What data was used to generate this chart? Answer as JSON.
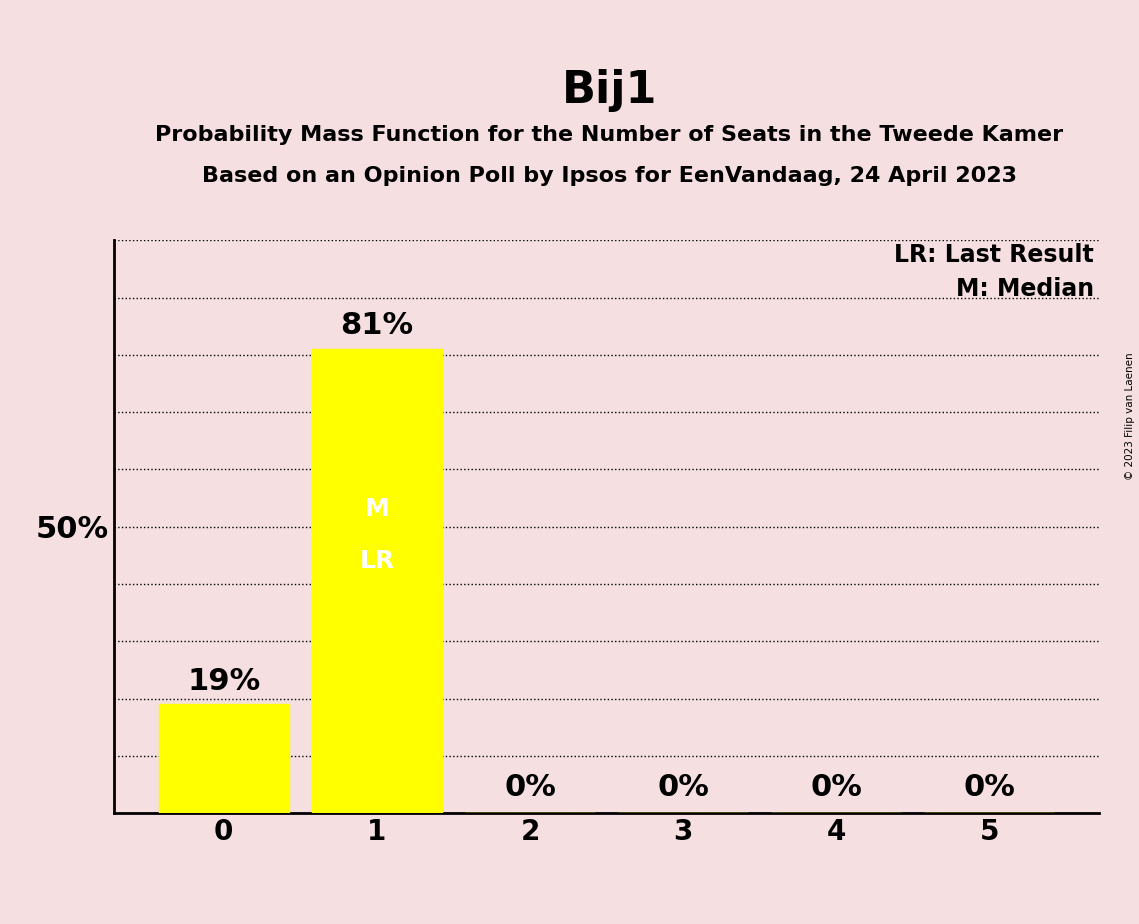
{
  "title": "Bij1",
  "subtitle1": "Probability Mass Function for the Number of Seats in the Tweede Kamer",
  "subtitle2": "Based on an Opinion Poll by Ipsos for EenVandaag, 24 April 2023",
  "copyright": "© 2023 Filip van Laenen",
  "categories": [
    0,
    1,
    2,
    3,
    4,
    5
  ],
  "values": [
    19,
    81,
    0,
    0,
    0,
    0
  ],
  "bar_color": "#ffff00",
  "background_color": "#f5dfe0",
  "bar_labels": [
    "19%",
    "81%",
    "0%",
    "0%",
    "0%",
    "0%"
  ],
  "median_seat": 1,
  "last_result_seat": 1,
  "legend_lr": "LR: Last Result",
  "legend_m": "M: Median",
  "ylim": [
    0,
    100
  ],
  "yticks": [
    0,
    10,
    20,
    30,
    40,
    50,
    60,
    70,
    80,
    90,
    100
  ],
  "title_fontsize": 32,
  "subtitle_fontsize": 16,
  "tick_fontsize": 20,
  "bar_label_fontsize": 22,
  "inside_label_fontsize": 18,
  "legend_fontsize": 17,
  "ylabel_fontsize": 22
}
